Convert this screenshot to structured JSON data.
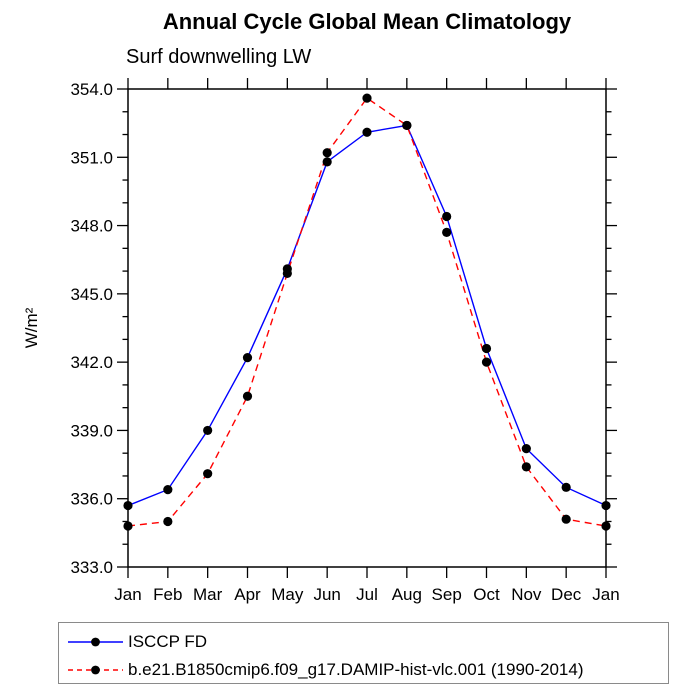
{
  "header": {
    "title": "Annual Cycle Global Mean Climatology",
    "subtitle": "Surf downwelling LW"
  },
  "chart_data": {
    "type": "line",
    "categories": [
      "Jan",
      "Feb",
      "Mar",
      "Apr",
      "May",
      "Jun",
      "Jul",
      "Aug",
      "Sep",
      "Oct",
      "Nov",
      "Dec",
      "Jan"
    ],
    "xlabel": "",
    "ylabel": "W/m²",
    "ylim": [
      333.0,
      354.0
    ],
    "ytick_major_interval": 3.0,
    "ytick_minor_interval": 1.0,
    "ytick_label_format_decimals": 1,
    "grid": false,
    "axis_color": "#000000",
    "marker_color": "#000000",
    "legend_position": "bottom-left",
    "series": [
      {
        "name": "ISCCP FD",
        "color": "#0000ff",
        "line_style": "solid",
        "marker": "filled-circle",
        "values": [
          335.7,
          336.4,
          339.0,
          342.2,
          346.1,
          350.8,
          352.1,
          352.4,
          348.4,
          342.6,
          338.2,
          336.5,
          335.7
        ]
      },
      {
        "name": "b.e21.B1850cmip6.f09_g17.DAMIP-hist-vlc.001 (1990-2014)",
        "color": "#ff0000",
        "line_style": "dashed",
        "marker": "filled-circle",
        "values": [
          334.8,
          335.0,
          337.1,
          340.5,
          345.9,
          351.2,
          353.6,
          352.4,
          347.7,
          342.0,
          337.4,
          335.1,
          334.8
        ]
      }
    ]
  }
}
